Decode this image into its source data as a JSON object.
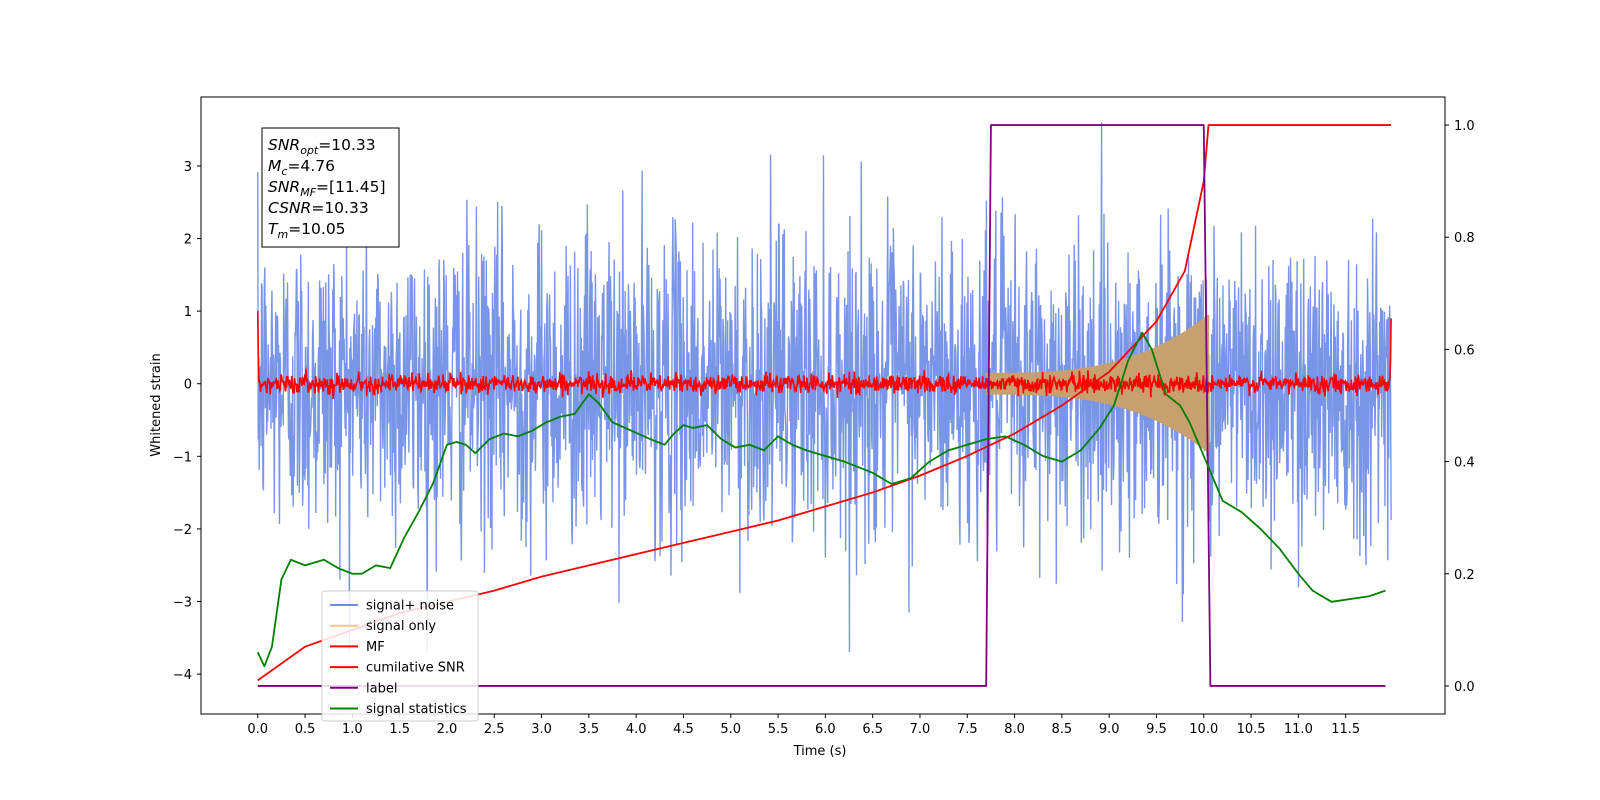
{
  "chart_data": {
    "type": "line",
    "title": "",
    "xlabel": "Time (s)",
    "ylabel": "Whitened strain",
    "xlim": [
      -0.6,
      12.55
    ],
    "ylim_left": [
      -4.55,
      3.95
    ],
    "ylim_right": [
      -0.05,
      1.05
    ],
    "x_ticks": [
      "0.0",
      "0.5",
      "1.0",
      "1.5",
      "2.0",
      "2.5",
      "3.0",
      "3.5",
      "4.0",
      "4.5",
      "5.0",
      "5.5",
      "6.0",
      "6.5",
      "7.0",
      "7.5",
      "8.0",
      "8.5",
      "9.0",
      "9.5",
      "10.0",
      "10.5",
      "11.0",
      "11.5"
    ],
    "y_ticks_left": [
      "−4",
      "−3",
      "−2",
      "−1",
      "0",
      "1",
      "2",
      "3"
    ],
    "y_ticks_right": [
      "0.0",
      "0.2",
      "0.4",
      "0.6",
      "0.8",
      "1.0"
    ],
    "grid": false,
    "legend_position": "lower-left",
    "legend": [
      {
        "label": "signal+ noise",
        "color": "#6a8ae4"
      },
      {
        "label": "signal only",
        "color": "#f5c77e"
      },
      {
        "label": "MF",
        "color": "#ff0000"
      },
      {
        "label": "cumilative SNR",
        "color": "#ff0000"
      },
      {
        "label": "label",
        "color": "#800080"
      },
      {
        "label": "signal statistics",
        "color": "#008000"
      }
    ],
    "stats_box": [
      {
        "base": "SNR",
        "sub": "opt",
        "value": "=10.33"
      },
      {
        "base": "M",
        "sub": "c",
        "value": "=4.76"
      },
      {
        "base": "SNR",
        "sub": "MF",
        "value": "=[11.45]"
      },
      {
        "base": "CSNR",
        "sub": "",
        "value": "=10.33"
      },
      {
        "base": "T",
        "sub": "m",
        "value": "=10.05"
      }
    ],
    "noise": {
      "x_range": [
        0.0,
        11.98
      ],
      "approx_amplitude_range": [
        -3.7,
        3.6
      ]
    },
    "signal_only": {
      "x_range": [
        7.7,
        10.05
      ],
      "envelope_start": 0.15,
      "envelope_peak": 0.95
    },
    "mf": {
      "x_range": [
        0.0,
        11.98
      ],
      "approx_amplitude_range": [
        -0.15,
        0.25
      ],
      "edge_values": [
        1.0,
        0.9
      ]
    },
    "series_right_axis": [
      {
        "name": "cumilative SNR",
        "color": "#ff0000",
        "x": [
          0.0,
          0.5,
          1.0,
          1.5,
          2.0,
          2.5,
          3.0,
          3.5,
          4.0,
          4.5,
          5.0,
          5.5,
          6.0,
          6.5,
          7.0,
          7.5,
          8.0,
          8.5,
          9.0,
          9.5,
          9.8,
          10.0,
          10.05,
          11.98
        ],
        "y": [
          0.01,
          0.07,
          0.1,
          0.13,
          0.15,
          0.17,
          0.195,
          0.215,
          0.235,
          0.255,
          0.275,
          0.295,
          0.32,
          0.345,
          0.375,
          0.41,
          0.45,
          0.5,
          0.56,
          0.65,
          0.74,
          0.9,
          1.0,
          1.0
        ]
      },
      {
        "name": "label",
        "color": "#800080",
        "x": [
          0.0,
          7.7,
          7.75,
          10.0,
          10.07,
          11.92
        ],
        "y": [
          0.0,
          0.0,
          1.0,
          1.0,
          0.0,
          0.0
        ]
      },
      {
        "name": "signal statistics",
        "color": "#008000",
        "x": [
          0.0,
          0.07,
          0.15,
          0.25,
          0.35,
          0.5,
          0.7,
          0.85,
          1.0,
          1.1,
          1.25,
          1.4,
          1.55,
          1.7,
          1.85,
          2.0,
          2.1,
          2.2,
          2.3,
          2.45,
          2.6,
          2.75,
          2.9,
          3.05,
          3.2,
          3.35,
          3.5,
          3.6,
          3.75,
          3.95,
          4.15,
          4.3,
          4.4,
          4.5,
          4.6,
          4.75,
          4.9,
          5.05,
          5.2,
          5.35,
          5.5,
          5.65,
          5.8,
          6.0,
          6.2,
          6.35,
          6.5,
          6.7,
          6.9,
          7.1,
          7.3,
          7.5,
          7.7,
          7.9,
          8.1,
          8.3,
          8.5,
          8.7,
          8.9,
          9.05,
          9.2,
          9.35,
          9.45,
          9.6,
          9.75,
          9.85,
          9.95,
          10.05,
          10.2,
          10.4,
          10.6,
          10.8,
          11.0,
          11.15,
          11.35,
          11.55,
          11.75,
          11.92
        ],
        "y": [
          0.06,
          0.035,
          0.07,
          0.19,
          0.225,
          0.215,
          0.225,
          0.21,
          0.2,
          0.2,
          0.215,
          0.21,
          0.265,
          0.31,
          0.36,
          0.43,
          0.435,
          0.43,
          0.415,
          0.44,
          0.45,
          0.445,
          0.455,
          0.47,
          0.48,
          0.485,
          0.52,
          0.505,
          0.47,
          0.455,
          0.44,
          0.43,
          0.45,
          0.465,
          0.46,
          0.465,
          0.44,
          0.425,
          0.43,
          0.42,
          0.445,
          0.43,
          0.42,
          0.41,
          0.4,
          0.39,
          0.38,
          0.36,
          0.37,
          0.4,
          0.42,
          0.43,
          0.44,
          0.445,
          0.43,
          0.41,
          0.4,
          0.42,
          0.46,
          0.5,
          0.58,
          0.63,
          0.6,
          0.52,
          0.5,
          0.47,
          0.43,
          0.39,
          0.33,
          0.31,
          0.28,
          0.245,
          0.2,
          0.17,
          0.15,
          0.155,
          0.16,
          0.17
        ]
      }
    ]
  }
}
